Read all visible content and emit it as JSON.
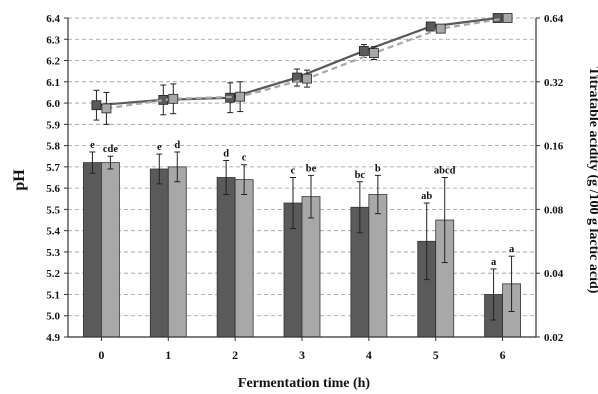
{
  "chart_data": {
    "type": "bar",
    "xlabel": "Fermentation time (h)",
    "ylabel": "pH",
    "y2label": "Titratable acidity (g /100 g lactic acid)",
    "categories": [
      "0",
      "1",
      "2",
      "3",
      "4",
      "5",
      "6"
    ],
    "ylim": [
      4.9,
      6.4
    ],
    "yticks": [
      "6.4",
      "6.3",
      "6.2",
      "6.1",
      "6.0",
      "5.9",
      "5.8",
      "5.7",
      "5.6",
      "5.5",
      "5.4",
      "5.3",
      "5.2",
      "5.1",
      "5.0",
      "4.9"
    ],
    "y2_scale": "log",
    "y2lim": [
      0.02,
      0.64
    ],
    "y2ticks": [
      "0.64",
      "0.32",
      "0.16",
      "0.08",
      "0.04",
      "0.02"
    ],
    "grid": true,
    "bar_series": [
      {
        "color": "#5a5a5a",
        "values": [
          5.72,
          5.69,
          5.65,
          5.53,
          5.51,
          5.35,
          5.1
        ],
        "errors": [
          0.05,
          0.07,
          0.08,
          0.12,
          0.12,
          0.18,
          0.12
        ],
        "labels": [
          "e",
          "e",
          "d",
          "c",
          "bc",
          "ab",
          "a"
        ]
      },
      {
        "color": "#a8a8a8",
        "values": [
          5.72,
          5.7,
          5.64,
          5.56,
          5.57,
          5.45,
          5.15
        ],
        "errors": [
          0.03,
          0.07,
          0.07,
          0.1,
          0.09,
          0.2,
          0.13
        ],
        "labels": [
          "cde",
          "d",
          "c",
          "be",
          "b",
          "abcd",
          "a"
        ]
      }
    ],
    "line_series": [
      {
        "color": "#5a5a5a",
        "style": "solid",
        "marker": "square",
        "axis": "y",
        "values": [
          5.99,
          6.015,
          6.025,
          6.12,
          6.245,
          6.36,
          6.4
        ],
        "errors": [
          0.07,
          0.07,
          0.07,
          0.04,
          0.03,
          0.02,
          0.01
        ]
      },
      {
        "color": "#a8a8a8",
        "style": "dashed",
        "marker": "square",
        "axis": "y",
        "values": [
          5.975,
          6.02,
          6.03,
          6.115,
          6.235,
          6.35,
          6.4
        ],
        "errors": [
          0.075,
          0.07,
          0.07,
          0.04,
          0.03,
          0.02,
          0.01
        ]
      }
    ]
  }
}
